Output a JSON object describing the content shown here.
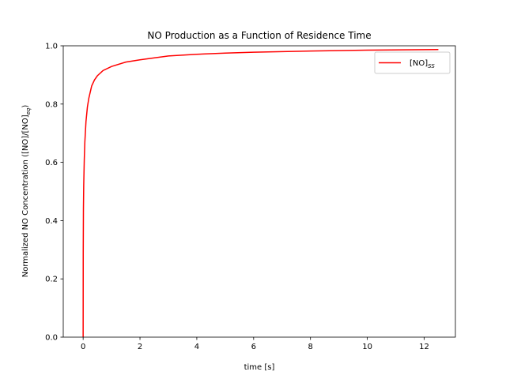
{
  "chart_data": {
    "type": "line",
    "title": "NO Production as a Function of Residence Time",
    "xlabel": "time [s]",
    "ylabel_main": "Normalized NO Concentration ([NO]/[NO]",
    "ylabel_sub": "eq",
    "ylabel_close": ")",
    "xlim": [
      -0.7,
      13.1
    ],
    "ylim": [
      0.0,
      1.0
    ],
    "xticks": [
      "0",
      "2",
      "4",
      "6",
      "8",
      "10",
      "12"
    ],
    "yticks": [
      "0.0",
      "0.2",
      "0.4",
      "0.6",
      "0.8",
      "1.0"
    ],
    "grid": false,
    "legend_position": "upper-right",
    "series": [
      {
        "name_main": "[NO]",
        "name_sub": "SS",
        "color": "#ff0000",
        "x": [
          0.0,
          0.003,
          0.01,
          0.02,
          0.04,
          0.06,
          0.1,
          0.15,
          0.2,
          0.3,
          0.4,
          0.5,
          0.7,
          1.0,
          1.5,
          2.0,
          3.0,
          4.0,
          5.0,
          6.0,
          8.0,
          10.0,
          12.5
        ],
        "y": [
          0.0,
          0.29,
          0.44,
          0.52,
          0.61,
          0.67,
          0.74,
          0.79,
          0.82,
          0.862,
          0.883,
          0.897,
          0.915,
          0.929,
          0.944,
          0.952,
          0.965,
          0.971,
          0.975,
          0.978,
          0.982,
          0.985,
          0.987
        ]
      }
    ]
  }
}
